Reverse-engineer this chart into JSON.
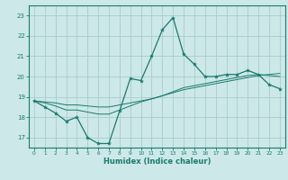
{
  "xlabel": "Humidex (Indice chaleur)",
  "ylabel": "",
  "background_color": "#cce8e8",
  "grid_color": "#aacccc",
  "line_color": "#1a7a6e",
  "xlim": [
    -0.5,
    23.5
  ],
  "ylim": [
    16.5,
    23.5
  ],
  "xticks": [
    0,
    1,
    2,
    3,
    4,
    5,
    6,
    7,
    8,
    9,
    10,
    11,
    12,
    13,
    14,
    15,
    16,
    17,
    18,
    19,
    20,
    21,
    22,
    23
  ],
  "yticks": [
    17,
    18,
    19,
    20,
    21,
    22,
    23
  ],
  "series1_x": [
    0,
    1,
    2,
    3,
    4,
    5,
    6,
    7,
    8,
    9,
    10,
    11,
    12,
    13,
    14,
    15,
    16,
    17,
    18,
    19,
    20,
    21,
    22,
    23
  ],
  "series1_y": [
    18.8,
    18.5,
    18.2,
    17.8,
    18.0,
    17.0,
    16.7,
    16.7,
    18.3,
    19.9,
    19.8,
    21.0,
    22.3,
    22.9,
    21.1,
    20.6,
    20.0,
    20.0,
    20.1,
    20.1,
    20.3,
    20.1,
    19.6,
    19.4
  ],
  "series2_x": [
    0,
    1,
    2,
    3,
    4,
    5,
    6,
    7,
    8,
    9,
    10,
    11,
    12,
    13,
    14,
    15,
    16,
    17,
    18,
    19,
    20,
    21,
    22,
    23
  ],
  "series2_y": [
    18.8,
    18.75,
    18.7,
    18.6,
    18.6,
    18.55,
    18.5,
    18.5,
    18.6,
    18.7,
    18.8,
    18.9,
    19.05,
    19.2,
    19.35,
    19.45,
    19.55,
    19.65,
    19.75,
    19.85,
    19.95,
    20.05,
    20.1,
    20.15
  ],
  "series3_x": [
    0,
    1,
    2,
    3,
    4,
    5,
    6,
    7,
    8,
    9,
    10,
    11,
    12,
    13,
    14,
    15,
    16,
    17,
    18,
    19,
    20,
    21,
    22,
    23
  ],
  "series3_y": [
    18.8,
    18.7,
    18.55,
    18.35,
    18.35,
    18.25,
    18.15,
    18.15,
    18.35,
    18.55,
    18.75,
    18.9,
    19.05,
    19.25,
    19.45,
    19.55,
    19.65,
    19.75,
    19.85,
    19.95,
    20.05,
    20.1,
    20.05,
    20.0
  ]
}
